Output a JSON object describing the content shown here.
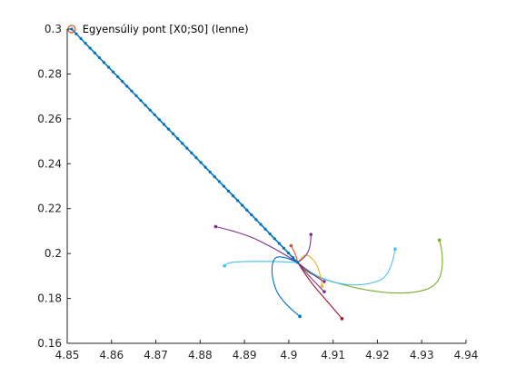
{
  "chart_data": {
    "type": "line",
    "title": "",
    "xlabel": "",
    "ylabel": "",
    "xlim": [
      4.85,
      4.94
    ],
    "ylim": [
      0.16,
      0.3
    ],
    "grid": false,
    "legend": "none",
    "x_ticks": [
      "4.85",
      "4.86",
      "4.87",
      "4.88",
      "4.89",
      "4.9",
      "4.91",
      "4.92",
      "4.93",
      "4.94"
    ],
    "y_ticks": [
      "0.16",
      "0.18",
      "0.2",
      "0.22",
      "0.24",
      "0.26",
      "0.28",
      "0.3"
    ],
    "equilibrium_point": {
      "x": 4.851,
      "y": 0.3,
      "color": "#D95319"
    },
    "annotations": [
      {
        "text": "Egyensúliy pont [X0;S0] (lenne)",
        "x": 4.852,
        "y": 0.3
      }
    ],
    "main_trajectory": {
      "color": "#0072BD",
      "start": [
        4.902,
        0.196
      ],
      "end": [
        4.851,
        0.3
      ],
      "marker_count": 50
    },
    "series": [
      {
        "color": "#77AC30",
        "x": [
          4.934,
          4.935,
          4.934,
          4.928,
          4.918,
          4.905,
          4.902
        ],
        "y": [
          0.206,
          0.199,
          0.186,
          0.182,
          0.183,
          0.19,
          0.196
        ]
      },
      {
        "color": "#4DBEEE",
        "x": [
          4.924,
          4.923,
          4.918,
          4.912,
          4.906,
          4.902
        ],
        "y": [
          0.202,
          0.19,
          0.186,
          0.186,
          0.19,
          0.196
        ]
      },
      {
        "color": "#7E2F8E",
        "x": [
          4.8835,
          4.89,
          4.897,
          4.902
        ],
        "y": [
          0.212,
          0.209,
          0.202,
          0.196
        ]
      },
      {
        "color": "#4DBEEE",
        "x": [
          4.8855,
          4.886,
          4.89,
          4.897,
          4.902
        ],
        "y": [
          0.1945,
          0.196,
          0.1965,
          0.1965,
          0.196
        ]
      },
      {
        "color": "#0072BD",
        "x": [
          4.9025,
          4.898,
          4.896,
          4.8965,
          4.899,
          4.902
        ],
        "y": [
          0.172,
          0.179,
          0.19,
          0.1985,
          0.1985,
          0.196
        ]
      },
      {
        "color": "#D95319",
        "x": [
          4.9005,
          4.9015,
          4.902
        ],
        "y": [
          0.2035,
          0.2,
          0.196
        ]
      },
      {
        "color": "#EDB120",
        "x": [
          4.9075,
          4.907,
          4.904,
          4.902
        ],
        "y": [
          0.1855,
          0.194,
          0.2005,
          0.196
        ]
      },
      {
        "color": "#7E2F8E",
        "x": [
          4.905,
          4.905,
          4.904,
          4.902
        ],
        "y": [
          0.2085,
          0.204,
          0.199,
          0.196
        ]
      },
      {
        "color": "#A2142F",
        "x": [
          4.912,
          4.909,
          4.905,
          4.902
        ],
        "y": [
          0.171,
          0.178,
          0.187,
          0.196
        ]
      },
      {
        "color": "#7E2F8E",
        "x": [
          4.908,
          4.905,
          4.902
        ],
        "y": [
          0.1875,
          0.191,
          0.196
        ]
      },
      {
        "color": "#7E2F8E",
        "x": [
          4.908,
          4.9045,
          4.902
        ],
        "y": [
          0.183,
          0.19,
          0.196
        ]
      }
    ]
  }
}
